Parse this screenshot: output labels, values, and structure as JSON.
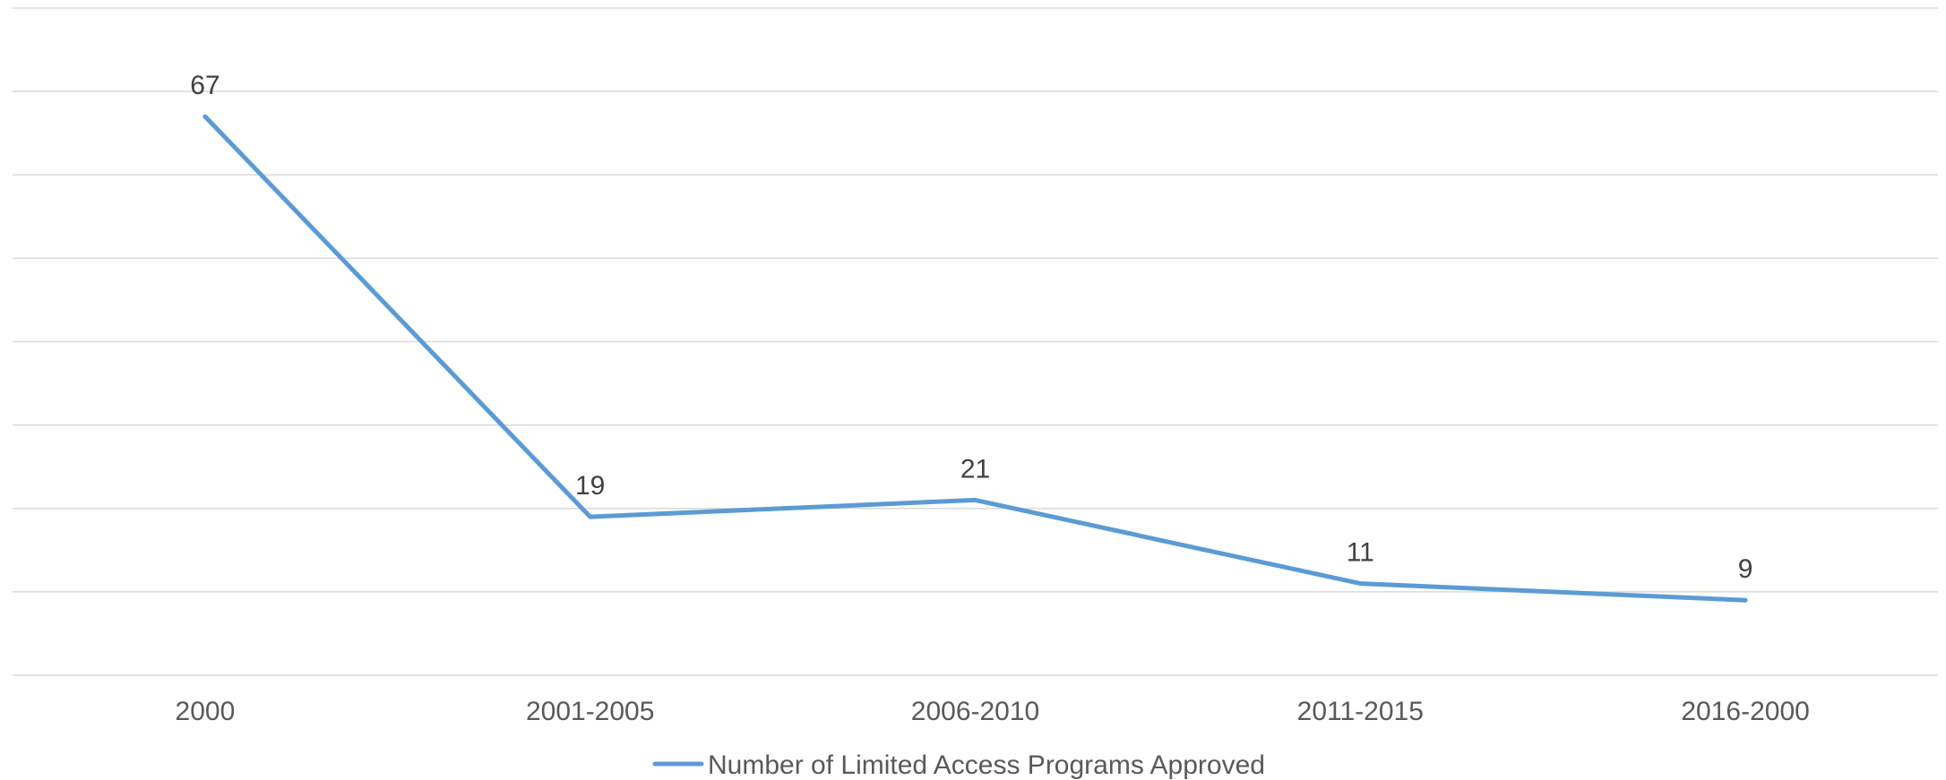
{
  "chart_data": {
    "type": "line",
    "categories": [
      "2000",
      "2001-2005",
      "2006-2010",
      "2011-2015",
      "2016-2000"
    ],
    "series": [
      {
        "name": "Number of Limited Access Programs Approved",
        "values": [
          67,
          19,
          21,
          11,
          9
        ],
        "color": "#5b9bd5"
      }
    ],
    "title": "",
    "xlabel": "",
    "ylabel": "",
    "ylim": [
      0,
      80
    ],
    "grid": true,
    "y_tick_labels_shown": false,
    "data_labels": true,
    "legend_position": "bottom"
  }
}
